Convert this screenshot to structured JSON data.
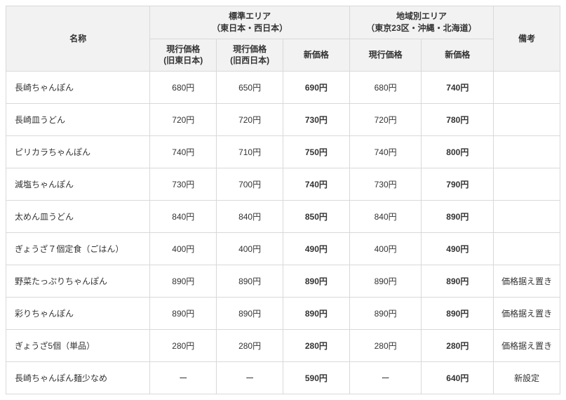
{
  "headers": {
    "name": "名称",
    "std_area_l1": "標準エリア",
    "std_area_l2": "（東日本・西日本）",
    "region_area_l1": "地域別エリア",
    "region_area_l2": "（東京23区・沖縄・北海道）",
    "note": "備考",
    "cur_east_l1": "現行価格",
    "cur_east_l2": "(旧東日本)",
    "cur_west_l1": "現行価格",
    "cur_west_l2": "(旧西日本)",
    "new_price": "新価格",
    "region_cur": "現行価格",
    "region_new": "新価格"
  },
  "rows": [
    {
      "name": "長崎ちゃんぽん",
      "east": "680円",
      "west": "650円",
      "stdNew": "690円",
      "regCur": "680円",
      "regNew": "740円",
      "note": ""
    },
    {
      "name": "長崎皿うどん",
      "east": "720円",
      "west": "720円",
      "stdNew": "730円",
      "regCur": "720円",
      "regNew": "780円",
      "note": ""
    },
    {
      "name": "ピリカラちゃんぽん",
      "east": "740円",
      "west": "710円",
      "stdNew": "750円",
      "regCur": "740円",
      "regNew": "800円",
      "note": ""
    },
    {
      "name": "減塩ちゃんぽん",
      "east": "730円",
      "west": "700円",
      "stdNew": "740円",
      "regCur": "730円",
      "regNew": "790円",
      "note": ""
    },
    {
      "name": "太めん皿うどん",
      "east": "840円",
      "west": "840円",
      "stdNew": "850円",
      "regCur": "840円",
      "regNew": "890円",
      "note": ""
    },
    {
      "name": "ぎょうざ７個定食（ごはん）",
      "east": "400円",
      "west": "400円",
      "stdNew": "490円",
      "regCur": "400円",
      "regNew": "490円",
      "note": ""
    },
    {
      "name": "野菜たっぷりちゃんぽん",
      "east": "890円",
      "west": "890円",
      "stdNew": "890円",
      "regCur": "890円",
      "regNew": "890円",
      "note": "価格据え置き"
    },
    {
      "name": "彩りちゃんぽん",
      "east": "890円",
      "west": "890円",
      "stdNew": "890円",
      "regCur": "890円",
      "regNew": "890円",
      "note": "価格据え置き"
    },
    {
      "name": "ぎょうざ5個（単品）",
      "east": "280円",
      "west": "280円",
      "stdNew": "280円",
      "regCur": "280円",
      "regNew": "280円",
      "note": "価格据え置き"
    },
    {
      "name": "長崎ちゃんぽん麺少なめ",
      "east": "ー",
      "west": "ー",
      "stdNew": "590円",
      "regCur": "ー",
      "regNew": "640円",
      "note": "新設定"
    }
  ]
}
